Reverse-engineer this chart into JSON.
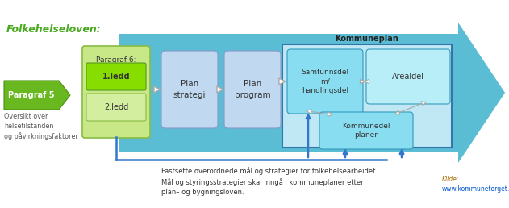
{
  "bg_color": "#ffffff",
  "title_folkehelseloven": "Folkehelseloven:",
  "title_folkehelseloven_color": "#4aaa20",
  "kommuneplan_label": "Kommuneplan",
  "big_arrow_color": "#5bbdd4",
  "paragraf5_text": "Paragraf 5",
  "paragraf5_bg": "#6ab820",
  "paragraf5_edge": "#4a9010",
  "paragraf5_text_color": "#ffffff",
  "oversikt_text": "Oversikt over\nhelsetilstanden\nog påvirkningsfaktorer",
  "oversikt_color": "#555555",
  "paragraf6_box_bg": "#c8e888",
  "paragraf6_box_edge": "#88bb44",
  "paragraf6_title": "Paragraf 6:",
  "paragraf6_title_color": "#333333",
  "ledd1_text": "1.ledd",
  "ledd1_bg": "#88dd00",
  "ledd1_edge": "#559922",
  "ledd2_text": "2.ledd",
  "ledd2_bg": "#d4eea0",
  "ledd2_edge": "#88bb44",
  "ledd_text_color": "#333333",
  "planstrategi_text": "Plan\nstrategi",
  "planstrategi_bg": "#c0d8f0",
  "planstrategi_edge": "#8899cc",
  "planprogram_text": "Plan\nprogram",
  "planprogram_bg": "#c0d8f0",
  "planprogram_edge": "#8899cc",
  "kommuneplan_inner_bg": "#c0e8f4",
  "kommuneplan_inner_edge": "#3377aa",
  "samfunnsdel_text": "Samfunnsdel\nm/\nhandlingsdel",
  "samfunnsdel_bg": "#88ddf0",
  "samfunnsdel_edge": "#3399bb",
  "arealdel_text": "Arealdel",
  "arealdel_bg": "#b8eef8",
  "arealdel_edge": "#3399bb",
  "kommunedel_text": "Kommunedel\nplaner",
  "kommunedel_bg": "#88ddf0",
  "kommunedel_edge": "#3399bb",
  "box_text_color": "#333333",
  "bottom_text": "Fastsette overordnede mål og strategier for folkehelsearbeidet.\nMål og styringsstrategier skal inngå i kommuneplaner etter\nplan– og bygningsloven.",
  "bottom_text_color": "#333333",
  "kilde_label_color": "#aa6600",
  "kilde_url_color": "#0055cc",
  "arrow_color": "#aaaaaa",
  "double_arrow_color": "#aaaaaa",
  "blue_line_color": "#3377cc",
  "blue_arrow_color": "#3377cc"
}
